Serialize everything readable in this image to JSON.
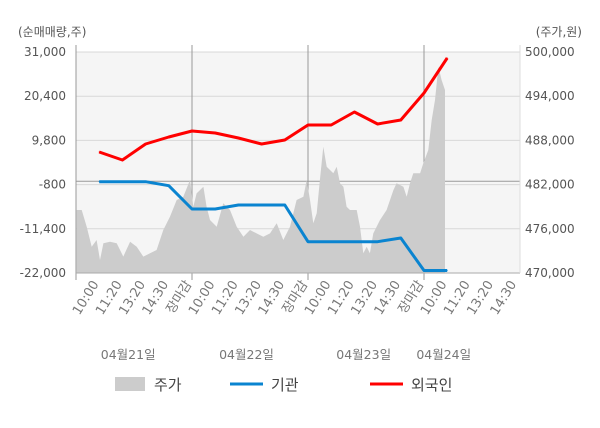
{
  "chart_data": {
    "type": "line",
    "left_axis_title": "(순매매량,주)",
    "right_axis_title": "(주가,원)",
    "left_ticks": [
      "31,000",
      "20,400",
      "9,800",
      "-800",
      "-11,400",
      "-22,000"
    ],
    "left_tick_values": [
      31000,
      20400,
      9800,
      -800,
      -11400,
      -22000
    ],
    "ylim_left": [
      -22000,
      31000
    ],
    "right_ticks": [
      "500,000",
      "494,000",
      "488,000",
      "482,000",
      "476,000",
      "470,000"
    ],
    "right_tick_values": [
      500000,
      494000,
      488000,
      482000,
      476000,
      470000
    ],
    "ylim_right": [
      470000,
      500000
    ],
    "x_unit": "trading days from 04월21일 open",
    "xlim": [
      0,
      3.8
    ],
    "x_tick_labels": [
      "10:00",
      "11:20",
      "13:20",
      "14:30",
      "장마감",
      "10:00",
      "11:20",
      "13:20",
      "14:30",
      "장마감",
      "10:00",
      "11:20",
      "13:20",
      "14:30",
      "장마감",
      "10:00",
      "11:20",
      "13:20",
      "14:30"
    ],
    "x_tick_positions": [
      0.2,
      0.4,
      0.6,
      0.8,
      1.0,
      1.2,
      1.4,
      1.6,
      1.8,
      2.0,
      2.2,
      2.4,
      2.6,
      2.8,
      3.0,
      3.2,
      3.4,
      3.6,
      3.8
    ],
    "dates": [
      "04월21일",
      "04월22일",
      "04월23일",
      "04월24일"
    ],
    "date_positions": [
      0.45,
      1.47,
      2.48,
      3.17
    ],
    "colors": {
      "price": "#cccccc",
      "institution": "#0a84d0",
      "foreign": "#ff0000",
      "close_label": "#ff0000",
      "current_label": "#333333"
    },
    "legend": [
      "주가",
      "기관",
      "외국인"
    ],
    "series": [
      {
        "name": "기관",
        "axis": "left",
        "x": [
          0.2,
          0.4,
          0.6,
          0.8,
          1.0,
          1.2,
          1.4,
          1.6,
          1.8,
          2.0,
          2.2,
          2.4,
          2.6,
          2.8,
          3.0,
          3.2
        ],
        "values": [
          -100,
          -100,
          -100,
          -1060,
          -6650,
          -6650,
          -5700,
          -5700,
          -5700,
          -14500,
          -14500,
          -14500,
          -14500,
          -13600,
          -21400,
          -21400
        ]
      },
      {
        "name": "외국인",
        "axis": "left",
        "x": [
          0.2,
          0.4,
          0.6,
          0.8,
          1.0,
          1.2,
          1.4,
          1.6,
          1.8,
          2.0,
          2.2,
          2.4,
          2.6,
          2.8,
          3.0,
          3.2
        ],
        "values": [
          7020,
          5100,
          8940,
          10620,
          12050,
          11580,
          10380,
          8940,
          9900,
          13500,
          13500,
          16610,
          13740,
          14700,
          21170,
          29560
        ]
      },
      {
        "name": "주가",
        "axis": "right",
        "type": "area",
        "x": [
          0.006,
          0.049,
          0.092,
          0.135,
          0.178,
          0.207,
          0.236,
          0.293,
          0.351,
          0.408,
          0.466,
          0.523,
          0.58,
          0.638,
          0.695,
          0.753,
          0.81,
          0.868,
          0.925,
          0.983,
          1.011,
          1.04,
          1.098,
          1.126,
          1.155,
          1.213,
          1.27,
          1.328,
          1.385,
          1.443,
          1.5,
          1.557,
          1.615,
          1.672,
          1.73,
          1.787,
          1.845,
          1.902,
          1.96,
          1.989,
          2.017,
          2.046,
          2.075,
          2.103,
          2.132,
          2.161,
          2.218,
          2.247,
          2.276,
          2.305,
          2.333,
          2.362,
          2.42,
          2.448,
          2.477,
          2.506,
          2.534,
          2.563,
          2.621,
          2.678,
          2.736,
          2.764,
          2.822,
          2.851,
          2.879,
          2.908,
          2.966,
          2.994,
          3.037,
          3.066,
          3.095,
          3.124,
          3.152,
          3.181
        ],
        "values": [
          478550,
          478550,
          476290,
          473570,
          474480,
          471760,
          474030,
          474250,
          474030,
          472220,
          474250,
          473570,
          472220,
          472670,
          473120,
          475840,
          477650,
          479910,
          480360,
          482620,
          479000,
          480810,
          481720,
          479000,
          477190,
          476290,
          479460,
          478550,
          476290,
          474930,
          475840,
          475380,
          474930,
          475380,
          476740,
          474480,
          476290,
          479910,
          480360,
          482620,
          479910,
          476740,
          478100,
          482620,
          487150,
          484430,
          483530,
          484430,
          482170,
          481720,
          479000,
          478550,
          478550,
          476290,
          472670,
          473570,
          472670,
          475380,
          477190,
          478550,
          481260,
          482170,
          481720,
          480360,
          482170,
          483530,
          483530,
          484890,
          486700,
          490770,
          493480,
          498010,
          496200,
          494840
        ]
      }
    ]
  }
}
